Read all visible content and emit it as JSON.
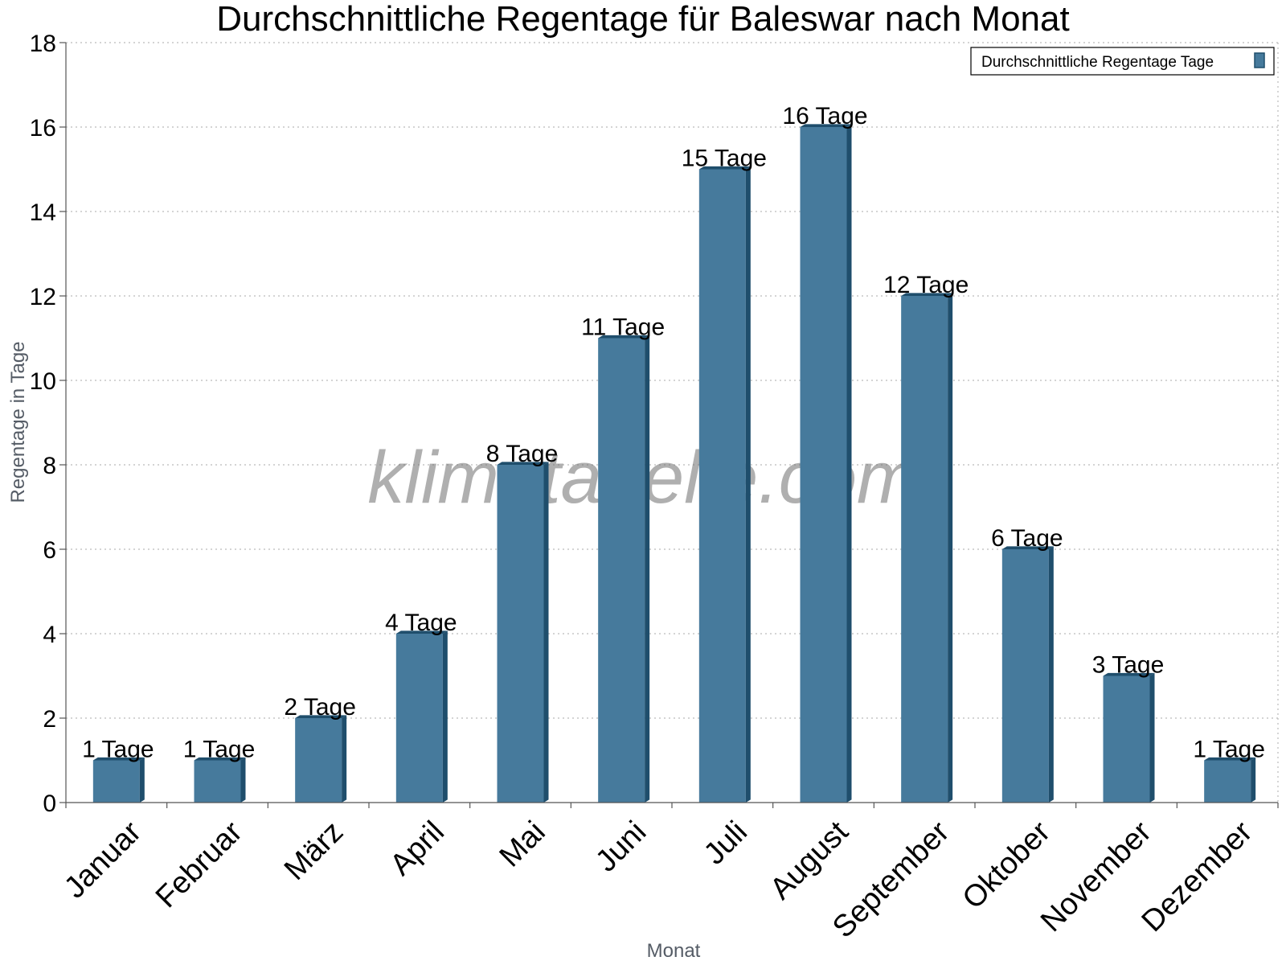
{
  "watermark": "klimatabelle.com",
  "colors": {
    "bar_front": "#467a9c",
    "bar_side": "#1f4e6c",
    "bar_top": "#1f4e6c",
    "grid": "#bbbbbb",
    "axis": "#555555"
  },
  "chart_data": {
    "type": "bar",
    "title": "Durchschnittliche Regentage für Baleswar nach Monat",
    "xlabel": "Monat",
    "ylabel": "Regentage in Tage",
    "categories": [
      "Januar",
      "Februar",
      "März",
      "April",
      "Mai",
      "Juni",
      "Juli",
      "August",
      "September",
      "Oktober",
      "November",
      "Dezember"
    ],
    "series": [
      {
        "name": "Durchschnittliche Regentage Tage",
        "values": [
          1,
          1,
          2,
          4,
          8,
          11,
          15,
          16,
          12,
          6,
          3,
          1
        ]
      }
    ],
    "data_labels": [
      "1 Tage",
      "1 Tage",
      "2 Tage",
      "4 Tage",
      "8 Tage",
      "11 Tage",
      "15 Tage",
      "16 Tage",
      "12 Tage",
      "6 Tage",
      "3 Tage",
      "1 Tage"
    ],
    "ylim": [
      0,
      18
    ],
    "yticks": [
      0,
      2,
      4,
      6,
      8,
      10,
      12,
      14,
      16,
      18
    ],
    "grid": true,
    "legend_position": "top-right"
  }
}
